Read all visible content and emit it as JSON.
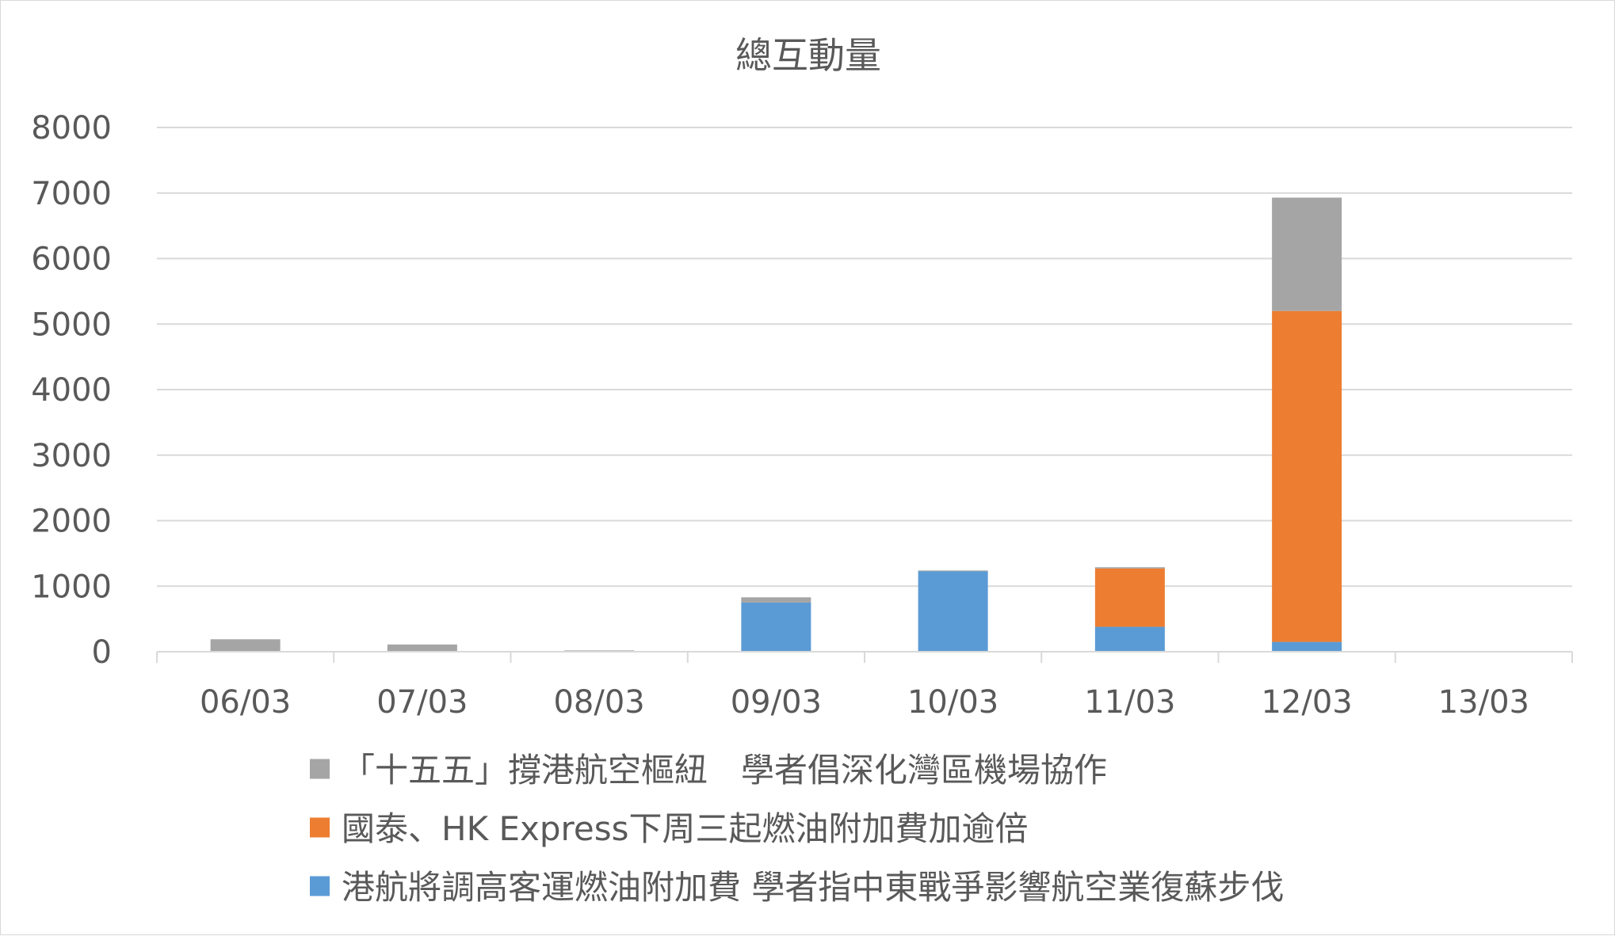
{
  "chart_data": {
    "type": "bar",
    "stacked": true,
    "title": "總互動量",
    "xlabel": "",
    "ylabel": "",
    "ylim": [
      0,
      8000
    ],
    "yticks": [
      0,
      1000,
      2000,
      3000,
      4000,
      5000,
      6000,
      7000,
      8000
    ],
    "grid": true,
    "legend_position": "bottom",
    "categories": [
      "06/03",
      "07/03",
      "08/03",
      "09/03",
      "10/03",
      "11/03",
      "12/03",
      "13/03"
    ],
    "series": [
      {
        "name": "港航將調高客運燃油附加費 學者指中東戰爭影響航空業復蘇步伐",
        "color": "#5b9bd5",
        "values": [
          0,
          0,
          0,
          750,
          1230,
          380,
          150,
          0
        ]
      },
      {
        "name": "國泰、HK Express下周三起燃油附加費加逾倍",
        "color": "#ed7d31",
        "values": [
          0,
          0,
          0,
          0,
          0,
          890,
          5050,
          0
        ]
      },
      {
        "name": "「十五五」撐港航空樞紐　學者倡深化灣區機場協作",
        "color": "#a5a5a5",
        "values": [
          190,
          110,
          20,
          80,
          10,
          20,
          1730,
          0
        ]
      }
    ],
    "legend_order": [
      2,
      1,
      0
    ]
  }
}
